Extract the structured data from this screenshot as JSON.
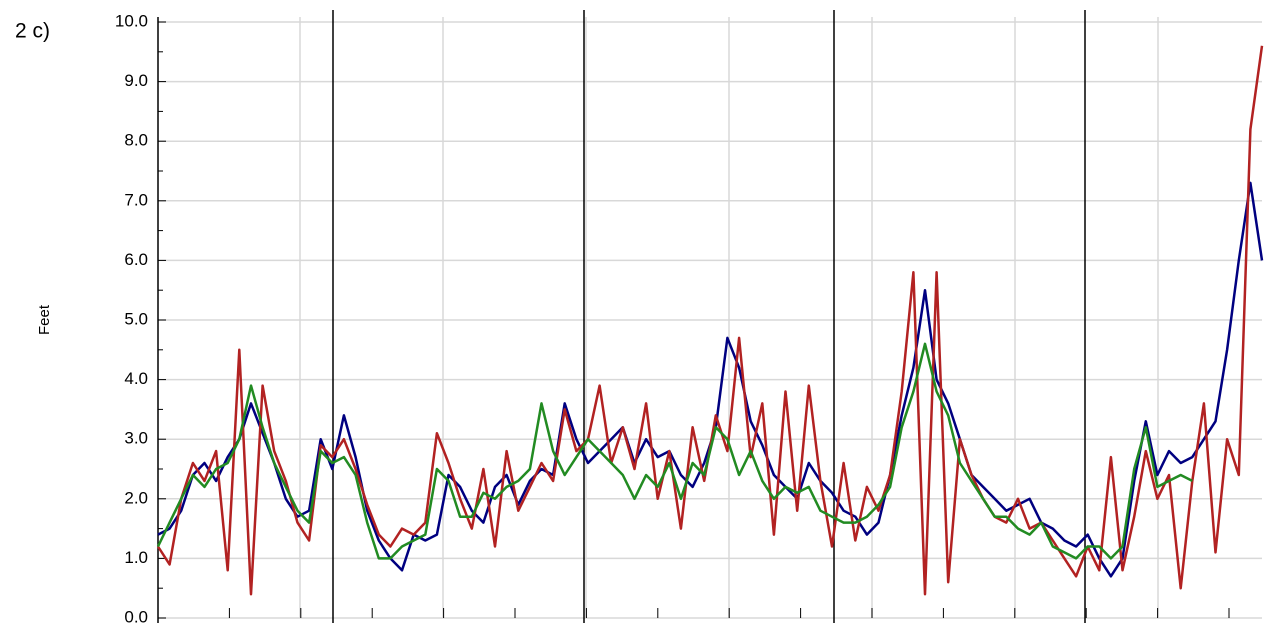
{
  "chart_data": {
    "type": "line",
    "title": "2 c)",
    "y_label": "Feet",
    "ylim": [
      0,
      10
    ],
    "yticks": [
      {
        "value": 0,
        "label": "0.0"
      },
      {
        "value": 1,
        "label": "1.0"
      },
      {
        "value": 2,
        "label": "2.0"
      },
      {
        "value": 3,
        "label": "3.0"
      },
      {
        "value": 4,
        "label": "4.0"
      },
      {
        "value": 5,
        "label": "5.0"
      },
      {
        "value": 6,
        "label": "6.0"
      },
      {
        "value": 7,
        "label": "7.0"
      },
      {
        "value": 8,
        "label": "8.0"
      },
      {
        "value": 9,
        "label": "9.0"
      },
      {
        "value": 10,
        "label": "10.0"
      }
    ],
    "grid": true,
    "series": [
      {
        "color": "#000080",
        "values": [
          1.4,
          1.5,
          1.8,
          2.4,
          2.6,
          2.3,
          2.7,
          3.0,
          3.6,
          3.1,
          2.6,
          2.0,
          1.7,
          1.8,
          3.0,
          2.5,
          3.4,
          2.7,
          1.8,
          1.3,
          1.0,
          0.8,
          1.4,
          1.3,
          1.4,
          2.4,
          2.2,
          1.8,
          1.6,
          2.2,
          2.4,
          1.9,
          2.3,
          2.5,
          2.4,
          3.6,
          3.0,
          2.6,
          2.8,
          3.0,
          3.2,
          2.6,
          3.0,
          2.7,
          2.8,
          2.4,
          2.2,
          2.6,
          3.2,
          4.7,
          4.2,
          3.3,
          2.9,
          2.4,
          2.2,
          2.0,
          2.6,
          2.3,
          2.1,
          1.8,
          1.7,
          1.4,
          1.6,
          2.4,
          3.4,
          4.2,
          5.5,
          4.0,
          3.6,
          3.0,
          2.4,
          2.2,
          2.0,
          1.8,
          1.9,
          2.0,
          1.6,
          1.5,
          1.3,
          1.2,
          1.4,
          1.0,
          0.7,
          1.0,
          2.3,
          3.3,
          2.4,
          2.8,
          2.6,
          2.7,
          3.0,
          3.3,
          4.5,
          6.0,
          7.3,
          6.0
        ]
      },
      {
        "color": "#b22222",
        "values": [
          1.2,
          0.9,
          2.0,
          2.6,
          2.3,
          2.8,
          0.8,
          4.5,
          0.4,
          3.9,
          2.8,
          2.3,
          1.6,
          1.3,
          2.9,
          2.7,
          3.0,
          2.5,
          1.9,
          1.4,
          1.2,
          1.5,
          1.4,
          1.6,
          3.1,
          2.6,
          2.0,
          1.5,
          2.5,
          1.2,
          2.8,
          1.8,
          2.2,
          2.6,
          2.3,
          3.5,
          2.8,
          3.0,
          3.9,
          2.6,
          3.2,
          2.5,
          3.6,
          2.0,
          2.8,
          1.5,
          3.2,
          2.3,
          3.4,
          2.8,
          4.7,
          2.7,
          3.6,
          1.4,
          3.8,
          1.8,
          3.9,
          2.3,
          1.2,
          2.6,
          1.3,
          2.2,
          1.8,
          2.4,
          3.8,
          5.8,
          0.4,
          5.8,
          0.6,
          3.0,
          2.4,
          2.0,
          1.7,
          1.6,
          2.0,
          1.5,
          1.6,
          1.3,
          1.0,
          0.7,
          1.2,
          0.8,
          2.7,
          0.8,
          1.7,
          2.8,
          2.0,
          2.4,
          0.5,
          2.3,
          3.6,
          1.1,
          3.0,
          2.4,
          8.2,
          9.6
        ]
      },
      {
        "color": "#228b22",
        "values": [
          1.2,
          1.6,
          2.0,
          2.4,
          2.2,
          2.5,
          2.6,
          3.0,
          3.9,
          3.2,
          2.6,
          2.2,
          1.8,
          1.6,
          2.8,
          2.6,
          2.7,
          2.4,
          1.6,
          1.0,
          1.0,
          1.2,
          1.3,
          1.4,
          2.5,
          2.3,
          1.7,
          1.7,
          2.1,
          2.0,
          2.2,
          2.3,
          2.5,
          3.6,
          2.8,
          2.4,
          2.7,
          3.0,
          2.8,
          2.6,
          2.4,
          2.0,
          2.4,
          2.2,
          2.6,
          2.0,
          2.6,
          2.4,
          3.2,
          3.0,
          2.4,
          2.8,
          2.3,
          2.0,
          2.2,
          2.1,
          2.2,
          1.8,
          1.7,
          1.6,
          1.6,
          1.7,
          1.9,
          2.2,
          3.2,
          3.8,
          4.6,
          3.8,
          3.4,
          2.6,
          2.3,
          2.0,
          1.7,
          1.7,
          1.5,
          1.4,
          1.6,
          1.2,
          1.1,
          1.0,
          1.2,
          1.2,
          1.0,
          1.2,
          2.5,
          3.2,
          2.2,
          2.3,
          2.4,
          2.3,
          null,
          null,
          null,
          null,
          null,
          null
        ]
      }
    ]
  }
}
